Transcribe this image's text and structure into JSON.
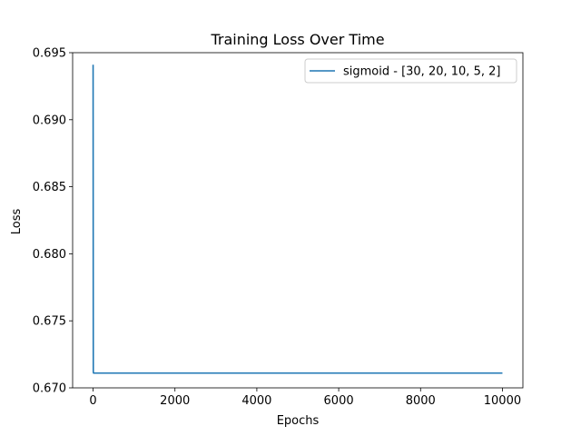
{
  "chart_data": {
    "type": "line",
    "title": "Training Loss Over Time",
    "xlabel": "Epochs",
    "ylabel": "Loss",
    "xlim": [
      -500,
      10500
    ],
    "ylim": [
      0.67,
      0.695
    ],
    "xticks": [
      0,
      2000,
      4000,
      6000,
      8000,
      10000
    ],
    "yticks": [
      0.67,
      0.675,
      0.68,
      0.685,
      0.69,
      0.695
    ],
    "xtick_labels": [
      "0",
      "2000",
      "4000",
      "6000",
      "8000",
      "10000"
    ],
    "ytick_labels": [
      "0.670",
      "0.675",
      "0.680",
      "0.685",
      "0.690",
      "0.695"
    ],
    "grid": false,
    "legend_position": "top-right",
    "series": [
      {
        "name": "sigmoid - [30, 20, 10, 5, 2]",
        "color": "#1f77b4",
        "x": [
          0,
          5,
          10,
          20,
          50,
          100,
          1000,
          2000,
          3000,
          4000,
          5000,
          6000,
          7000,
          8000,
          9000,
          10000
        ],
        "y": [
          0.6941,
          0.6712,
          0.6711,
          0.6711,
          0.6711,
          0.6711,
          0.6711,
          0.6711,
          0.6711,
          0.6711,
          0.6711,
          0.6711,
          0.6711,
          0.6711,
          0.6711,
          0.6711
        ]
      }
    ]
  }
}
